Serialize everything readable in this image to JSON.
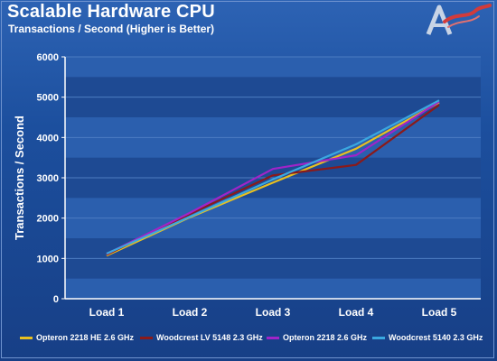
{
  "header": {
    "title": "Scalable Hardware CPU",
    "subtitle": "Transactions / Second (Higher is Better)"
  },
  "chart_data": {
    "type": "line",
    "title": "Scalable Hardware CPU",
    "subtitle": "Transactions / Second (Higher is Better)",
    "xlabel": "",
    "ylabel": "Transactions / Second",
    "categories": [
      "Load 1",
      "Load 2",
      "Load 3",
      "Load 4",
      "Load 5"
    ],
    "ylim": [
      0,
      6000
    ],
    "yticks": [
      0,
      1000,
      2000,
      3000,
      4000,
      5000,
      6000
    ],
    "grid": true,
    "legend_position": "bottom",
    "series": [
      {
        "name": "Opteron 2218 HE 2.6 GHz",
        "color": "#e8c020",
        "values": [
          1070,
          2020,
          2880,
          3720,
          4870
        ]
      },
      {
        "name": "Woodcrest LV 5148 2.3 GHz",
        "color": "#8b1a1a",
        "values": [
          1090,
          2100,
          3060,
          3320,
          4810
        ]
      },
      {
        "name": "Opteron 2218 2.6 GHz",
        "color": "#a024c8",
        "values": [
          1110,
          2130,
          3220,
          3560,
          4890
        ]
      },
      {
        "name": "Woodcrest 5140 2.3 GHz",
        "color": "#3aa8e0",
        "values": [
          1120,
          2030,
          2960,
          3830,
          4920
        ]
      }
    ]
  }
}
